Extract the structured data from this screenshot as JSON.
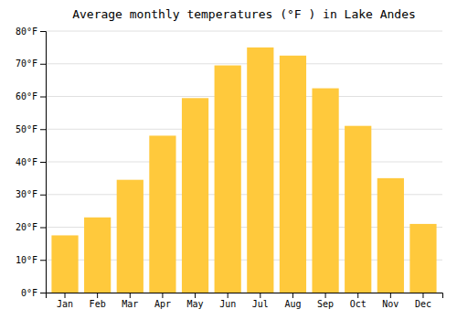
{
  "chart_data": {
    "type": "bar",
    "title": "Average monthly temperatures (°F ) in Lake Andes",
    "categories": [
      "Jan",
      "Feb",
      "Mar",
      "Apr",
      "May",
      "Jun",
      "Jul",
      "Aug",
      "Sep",
      "Oct",
      "Nov",
      "Dec"
    ],
    "values": [
      17.5,
      23,
      34.5,
      48,
      59.5,
      69.5,
      75,
      72.5,
      62.5,
      51,
      35,
      21
    ],
    "color": "#FFC93C",
    "ylim": [
      0,
      80
    ],
    "yticks": [
      {
        "value": 0,
        "label": "0°F"
      },
      {
        "value": 10,
        "label": "10°F"
      },
      {
        "value": 20,
        "label": "20°F"
      },
      {
        "value": 30,
        "label": "30°F"
      },
      {
        "value": 40,
        "label": "40°F"
      },
      {
        "value": 50,
        "label": "50°F"
      },
      {
        "value": 60,
        "label": "60°F"
      },
      {
        "value": 70,
        "label": "70°F"
      },
      {
        "value": 80,
        "label": "80°F"
      }
    ],
    "grid": true
  }
}
